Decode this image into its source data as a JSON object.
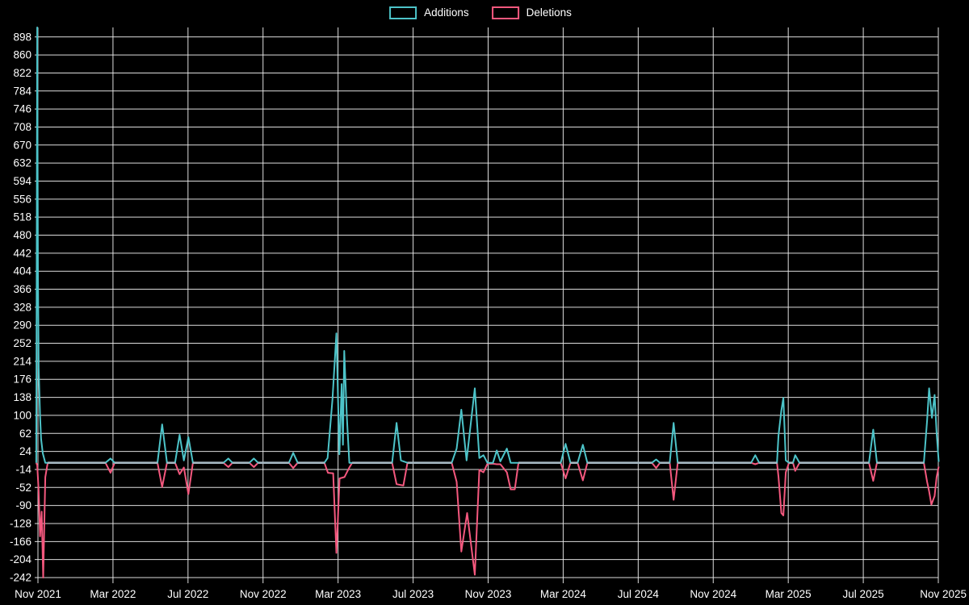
{
  "legend": {
    "items": [
      {
        "label": "Additions",
        "color": "#4dc4c9"
      },
      {
        "label": "Deletions",
        "color": "#f4587e"
      }
    ]
  },
  "colors": {
    "background": "#000000",
    "grid": "#e9e9e9",
    "text": "#ffffff",
    "zero_baseline": "#a6b8c2",
    "additions": "#4dc4c9",
    "deletions": "#f4587e"
  },
  "chart_data": {
    "type": "line",
    "title": "",
    "legend_position": "top-center",
    "grid": true,
    "x_unit": "months since Nov 2021 (0 = Nov 2021, 48 = Nov 2025)",
    "xlim": [
      0,
      48
    ],
    "ylim": [
      -242,
      918
    ],
    "x_tick_labels": [
      "Nov 2021",
      "Mar 2022",
      "Jul 2022",
      "Nov 2022",
      "Mar 2023",
      "Jul 2023",
      "Nov 2023",
      "Mar 2024",
      "Jul 2024",
      "Nov 2024",
      "Mar 2025",
      "Jul 2025",
      "Nov 2025"
    ],
    "y_tick_labels": [
      898,
      860,
      822,
      784,
      746,
      708,
      670,
      632,
      594,
      556,
      518,
      480,
      442,
      404,
      366,
      328,
      290,
      252,
      214,
      176,
      138,
      100,
      62,
      24,
      -14,
      -52,
      -90,
      -128,
      -166,
      -204,
      -242
    ],
    "series": [
      {
        "name": "Additions",
        "color": "#4dc4c9",
        "points": [
          [
            -0.09,
            0
          ],
          [
            -0.04,
            918
          ],
          [
            0,
            400
          ],
          [
            0.04,
            200
          ],
          [
            0.11,
            100
          ],
          [
            0.17,
            50
          ],
          [
            0.26,
            20
          ],
          [
            0.39,
            0
          ],
          [
            0.52,
            0
          ],
          [
            3.6,
            0
          ],
          [
            3.87,
            9
          ],
          [
            4.09,
            0
          ],
          [
            6.37,
            0
          ],
          [
            6.62,
            81
          ],
          [
            6.88,
            0
          ],
          [
            7.31,
            0
          ],
          [
            7.55,
            59
          ],
          [
            7.78,
            5
          ],
          [
            8.02,
            54
          ],
          [
            8.26,
            0
          ],
          [
            9.89,
            0
          ],
          [
            10.15,
            9
          ],
          [
            10.37,
            0
          ],
          [
            11.27,
            0
          ],
          [
            11.51,
            9
          ],
          [
            11.74,
            0
          ],
          [
            13.38,
            0
          ],
          [
            13.61,
            21
          ],
          [
            13.85,
            0
          ],
          [
            15.27,
            0
          ],
          [
            15.44,
            10
          ],
          [
            15.7,
            133
          ],
          [
            15.91,
            273
          ],
          [
            16.07,
            18
          ],
          [
            16.19,
            166
          ],
          [
            16.26,
            38
          ],
          [
            16.33,
            236
          ],
          [
            16.47,
            95
          ],
          [
            16.6,
            0
          ],
          [
            16.75,
            0
          ],
          [
            18.88,
            0
          ],
          [
            19.12,
            84
          ],
          [
            19.35,
            5
          ],
          [
            19.7,
            0
          ],
          [
            22.06,
            0
          ],
          [
            22.32,
            30
          ],
          [
            22.57,
            112
          ],
          [
            22.85,
            5
          ],
          [
            23.29,
            157
          ],
          [
            23.53,
            10
          ],
          [
            23.75,
            16
          ],
          [
            23.96,
            0
          ],
          [
            24.26,
            0
          ],
          [
            24.46,
            26
          ],
          [
            24.65,
            3
          ],
          [
            25.0,
            30
          ],
          [
            25.2,
            0
          ],
          [
            25.42,
            0
          ],
          [
            25.62,
            0
          ],
          [
            27.87,
            0
          ],
          [
            28.13,
            40
          ],
          [
            28.39,
            0
          ],
          [
            28.77,
            0
          ],
          [
            29.05,
            38
          ],
          [
            29.29,
            0
          ],
          [
            32.73,
            0
          ],
          [
            32.96,
            7
          ],
          [
            33.16,
            0
          ],
          [
            33.68,
            0
          ],
          [
            33.89,
            84
          ],
          [
            34.11,
            0
          ],
          [
            38.02,
            0
          ],
          [
            38.24,
            16
          ],
          [
            38.45,
            0
          ],
          [
            39.4,
            0
          ],
          [
            39.48,
            58
          ],
          [
            39.63,
            110
          ],
          [
            39.74,
            137
          ],
          [
            39.87,
            5
          ],
          [
            40.04,
            0
          ],
          [
            40.25,
            0
          ],
          [
            40.37,
            16
          ],
          [
            40.6,
            0
          ],
          [
            44.3,
            0
          ],
          [
            44.53,
            70
          ],
          [
            44.73,
            0
          ],
          [
            47.23,
            0
          ],
          [
            47.4,
            89
          ],
          [
            47.51,
            157
          ],
          [
            47.66,
            95
          ],
          [
            47.8,
            143
          ],
          [
            47.91,
            63
          ],
          [
            48.02,
            2
          ]
        ]
      },
      {
        "name": "Deletions",
        "color": "#f4587e",
        "points": [
          [
            -0.09,
            0
          ],
          [
            -0.04,
            -5
          ],
          [
            0.04,
            -60
          ],
          [
            0.11,
            -155
          ],
          [
            0.2,
            -103
          ],
          [
            0.28,
            -242
          ],
          [
            0.39,
            -30
          ],
          [
            0.52,
            0
          ],
          [
            3.6,
            0
          ],
          [
            3.87,
            -21
          ],
          [
            4.09,
            0
          ],
          [
            6.37,
            0
          ],
          [
            6.62,
            -51
          ],
          [
            6.88,
            0
          ],
          [
            7.31,
            0
          ],
          [
            7.55,
            -24
          ],
          [
            7.78,
            -10
          ],
          [
            8.02,
            -66
          ],
          [
            8.26,
            0
          ],
          [
            9.89,
            0
          ],
          [
            10.15,
            -9
          ],
          [
            10.37,
            0
          ],
          [
            11.27,
            0
          ],
          [
            11.51,
            -9
          ],
          [
            11.74,
            0
          ],
          [
            13.38,
            0
          ],
          [
            13.61,
            -11
          ],
          [
            13.85,
            0
          ],
          [
            15.27,
            0
          ],
          [
            15.46,
            -21
          ],
          [
            15.74,
            -22
          ],
          [
            15.91,
            -190
          ],
          [
            15.99,
            -120
          ],
          [
            16.08,
            -33
          ],
          [
            16.34,
            -30
          ],
          [
            16.6,
            -10
          ],
          [
            16.75,
            0
          ],
          [
            18.88,
            0
          ],
          [
            19.12,
            -45
          ],
          [
            19.48,
            -48
          ],
          [
            19.7,
            0
          ],
          [
            22.06,
            0
          ],
          [
            22.32,
            -40
          ],
          [
            22.57,
            -187
          ],
          [
            22.88,
            -106
          ],
          [
            23.29,
            -236
          ],
          [
            23.53,
            -15
          ],
          [
            23.75,
            -20
          ],
          [
            23.96,
            -2
          ],
          [
            24.26,
            -2
          ],
          [
            24.46,
            -3
          ],
          [
            24.65,
            -3
          ],
          [
            25.0,
            -20
          ],
          [
            25.2,
            -56
          ],
          [
            25.42,
            -56
          ],
          [
            25.62,
            0
          ],
          [
            27.87,
            0
          ],
          [
            28.13,
            -33
          ],
          [
            28.39,
            0
          ],
          [
            28.77,
            0
          ],
          [
            29.05,
            -37
          ],
          [
            29.29,
            0
          ],
          [
            32.73,
            0
          ],
          [
            32.96,
            -11
          ],
          [
            33.16,
            0
          ],
          [
            33.68,
            0
          ],
          [
            33.89,
            -78
          ],
          [
            34.11,
            0
          ],
          [
            38.02,
            0
          ],
          [
            38.24,
            -3
          ],
          [
            38.45,
            0
          ],
          [
            39.4,
            0
          ],
          [
            39.48,
            -30
          ],
          [
            39.63,
            -106
          ],
          [
            39.74,
            -111
          ],
          [
            39.87,
            -20
          ],
          [
            40.04,
            0
          ],
          [
            40.25,
            0
          ],
          [
            40.37,
            -17
          ],
          [
            40.6,
            0
          ],
          [
            44.3,
            0
          ],
          [
            44.53,
            -38
          ],
          [
            44.73,
            0
          ],
          [
            47.23,
            0
          ],
          [
            47.4,
            -40
          ],
          [
            47.51,
            -60
          ],
          [
            47.63,
            -88
          ],
          [
            47.8,
            -70
          ],
          [
            47.91,
            -30
          ],
          [
            48.02,
            -8
          ]
        ]
      }
    ]
  }
}
